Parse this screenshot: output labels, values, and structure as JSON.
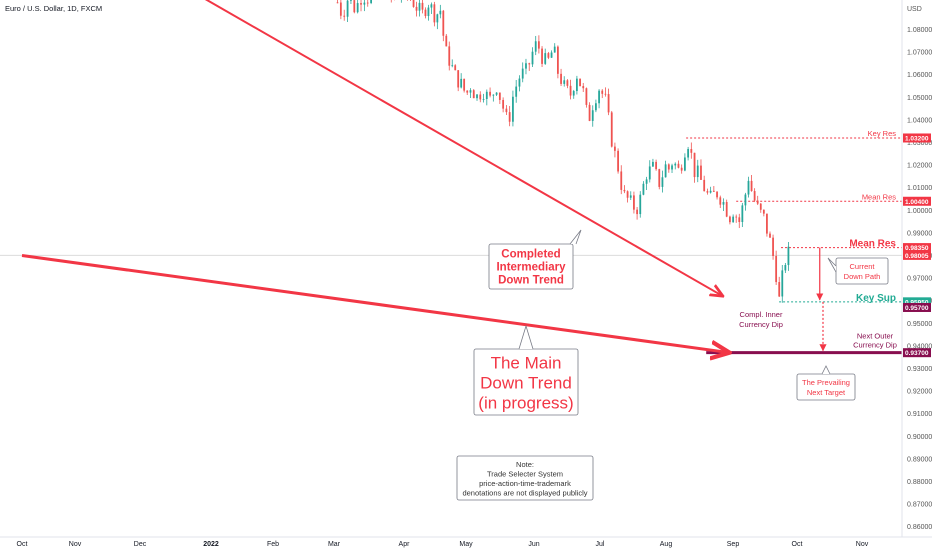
{
  "chart_data": {
    "type": "candlestick",
    "title": "Euro / U.S. Dollar, 1D, FXCM",
    "currency": "USD",
    "y_ticks": [
      1.08,
      1.07,
      1.06,
      1.05,
      1.04,
      1.03,
      1.02,
      1.01,
      1.0,
      0.99,
      0.98,
      0.97,
      0.96,
      0.95,
      0.94,
      0.93,
      0.92,
      0.91,
      0.9,
      0.89,
      0.88,
      0.87,
      0.86
    ],
    "y_tick_labels": [
      "1.08000",
      "1.07000",
      "1.06000",
      "1.05000",
      "1.04000",
      "1.03000",
      "1.02000",
      "1.01000",
      "1.00000",
      "0.99000",
      "0.98000",
      "0.97000",
      "0.96000",
      "0.95000",
      "0.94000",
      "0.93000",
      "0.92000",
      "0.91000",
      "0.90000",
      "0.89000",
      "0.88000",
      "0.87000",
      "0.86000"
    ],
    "x_ticks": [
      {
        "label": "Oct",
        "t": 0
      },
      {
        "label": "Nov",
        "t": 1
      },
      {
        "label": "Dec",
        "t": 2
      },
      {
        "label": "2022",
        "t": 3,
        "bold": true
      },
      {
        "label": "Feb",
        "t": 4
      },
      {
        "label": "Mar",
        "t": 5
      },
      {
        "label": "Apr",
        "t": 6
      },
      {
        "label": "May",
        "t": 7
      },
      {
        "label": "Jun",
        "t": 8
      },
      {
        "label": "Jul",
        "t": 9
      },
      {
        "label": "Aug",
        "t": 10
      },
      {
        "label": "Sep",
        "t": 11
      },
      {
        "label": "Oct",
        "t": 12
      },
      {
        "label": "Nov",
        "t": 13
      }
    ],
    "price_path": [
      [
        5.05,
        1.092
      ],
      [
        5.12,
        1.086
      ],
      [
        5.2,
        1.094
      ],
      [
        5.3,
        1.089
      ],
      [
        5.4,
        1.095
      ],
      [
        5.55,
        1.093
      ],
      [
        5.7,
        1.099
      ],
      [
        5.85,
        1.092
      ],
      [
        6.0,
        1.097
      ],
      [
        6.1,
        1.094
      ],
      [
        6.2,
        1.09
      ],
      [
        6.3,
        1.087
      ],
      [
        6.4,
        1.092
      ],
      [
        6.5,
        1.086
      ],
      [
        6.6,
        1.089
      ],
      [
        6.65,
        1.072
      ],
      [
        6.75,
        1.065
      ],
      [
        6.85,
        1.058
      ],
      [
        6.95,
        1.055
      ],
      [
        7.0,
        1.05
      ],
      [
        7.05,
        1.056
      ],
      [
        7.15,
        1.05
      ],
      [
        7.25,
        1.053
      ],
      [
        7.35,
        1.049
      ],
      [
        7.45,
        1.055
      ],
      [
        7.55,
        1.045
      ],
      [
        7.62,
        1.038
      ],
      [
        7.7,
        1.052
      ],
      [
        7.8,
        1.06
      ],
      [
        7.9,
        1.062
      ],
      [
        8.0,
        1.072
      ],
      [
        8.05,
        1.074
      ],
      [
        8.12,
        1.068
      ],
      [
        8.2,
        1.065
      ],
      [
        8.3,
        1.072
      ],
      [
        8.35,
        1.062
      ],
      [
        8.45,
        1.055
      ],
      [
        8.55,
        1.051
      ],
      [
        8.65,
        1.06
      ],
      [
        8.75,
        1.052
      ],
      [
        8.82,
        1.039
      ],
      [
        8.9,
        1.048
      ],
      [
        9.0,
        1.055
      ],
      [
        9.05,
        1.05
      ],
      [
        9.1,
        1.048
      ],
      [
        9.15,
        1.035
      ],
      [
        9.2,
        1.028
      ],
      [
        9.28,
        1.018
      ],
      [
        9.35,
        1.007
      ],
      [
        9.45,
        1.004
      ],
      [
        9.55,
        1.0
      ],
      [
        9.6,
        1.004
      ],
      [
        9.7,
        1.016
      ],
      [
        9.8,
        1.019
      ],
      [
        9.9,
        1.012
      ],
      [
        10.0,
        1.02
      ],
      [
        10.05,
        1.018
      ],
      [
        10.1,
        1.022
      ],
      [
        10.2,
        1.017
      ],
      [
        10.3,
        1.029
      ],
      [
        10.36,
        1.031
      ],
      [
        10.4,
        1.016
      ],
      [
        10.45,
        1.018
      ],
      [
        10.55,
        1.011
      ],
      [
        10.65,
        1.005
      ],
      [
        10.75,
        1.008
      ],
      [
        10.85,
        1.004
      ],
      [
        10.95,
        0.997
      ],
      [
        11.0,
        1.0
      ],
      [
        11.1,
        0.995
      ],
      [
        11.2,
        1.008
      ],
      [
        11.25,
        1.016
      ],
      [
        11.3,
        1.007
      ],
      [
        11.4,
        1.0
      ],
      [
        11.5,
        0.996
      ],
      [
        11.55,
        0.988
      ],
      [
        11.6,
        0.985
      ],
      [
        11.65,
        0.975
      ],
      [
        11.7,
        0.968
      ],
      [
        11.72,
        0.96
      ],
      [
        11.75,
        0.967
      ],
      [
        11.82,
        0.978
      ],
      [
        11.88,
        0.982
      ]
    ],
    "horizontal_levels": [
      {
        "name": "Key Res",
        "value": 1.032,
        "label": "1.03200",
        "color": "#f23645",
        "line_start_t": 10.3,
        "style": "dotted"
      },
      {
        "name": "Mean Res",
        "value": 1.004,
        "label": "1.00400",
        "color": "#f23645",
        "line_start_t": 11.05,
        "style": "dotted"
      },
      {
        "name": "Mean Res",
        "value": 0.9835,
        "label": "0.98350",
        "color": "#f23645",
        "line_start_t": 11.75,
        "style": "dotted",
        "text_size": "large"
      },
      {
        "name": "",
        "value": 0.98005,
        "label": "0.98005",
        "color": "#f23645",
        "line_start_t": 0,
        "style": "grid"
      },
      {
        "name": "Key Sup",
        "value": 0.9595,
        "label": "0.95950",
        "color": "#22ab94",
        "line_start_t": 11.72,
        "style": "dotted",
        "text_size": "large"
      },
      {
        "name": "",
        "value": 0.957,
        "label": "0.95700",
        "color": "#880e4f",
        "line_start_t": 11.72,
        "style": "none"
      },
      {
        "name": "",
        "value": 0.937,
        "label": "0.93700",
        "color": "#880e4f",
        "line_start_t": 10.6,
        "style": "solid"
      }
    ],
    "trend_lines": [
      {
        "name": "Completed Intermediary Down Trend",
        "from": [
          1.7,
          1.115
        ],
        "to": [
          10.85,
          0.962
        ],
        "color": "#f23645",
        "width": 2,
        "arrow": true
      },
      {
        "name": "The Main Down Trend (in progress)",
        "from": [
          0,
          0.98
        ],
        "to": [
          10.95,
          0.937
        ],
        "color": "#f23645",
        "width": 3,
        "arrow": true
      }
    ],
    "projection_arrows": [
      {
        "name": "Current Down Path",
        "from": [
          12.35,
          0.9835
        ],
        "to": [
          12.35,
          0.9595
        ],
        "color": "#f23645",
        "style": "solid"
      },
      {
        "name": "The Prevailing Next Target",
        "from": [
          12.4,
          0.9595
        ],
        "to": [
          12.4,
          0.937
        ],
        "color": "#f23645",
        "style": "dotted"
      }
    ],
    "annotations": [
      {
        "name": "Completed Intermediary Down Trend",
        "text_lines": [
          "Completed",
          "Intermediary",
          "Down Trend"
        ],
        "color": "#f23645",
        "boxed": true,
        "size": "medium"
      },
      {
        "name": "The Main Down Trend (in progress)",
        "text_lines": [
          "The Main",
          "Down Trend",
          "(in progress)"
        ],
        "color": "#f23645",
        "boxed": true,
        "size": "large"
      },
      {
        "name": "Current Down Path",
        "text_lines": [
          "Current",
          "Down Path"
        ],
        "color": "#f23645",
        "boxed": true,
        "size": "small"
      },
      {
        "name": "The Prevailing Next Target",
        "text_lines": [
          "The Prevailing",
          "Next Target"
        ],
        "color": "#f23645",
        "boxed": true,
        "size": "small"
      },
      {
        "name": "Compl. Inner Currency Dip",
        "text_lines": [
          "Compl. Inner",
          "Currency Dip"
        ],
        "color": "#880e4f",
        "boxed": false,
        "size": "small"
      },
      {
        "name": "Next Outer Currency Dip",
        "text_lines": [
          "Next Outer",
          "Currency Dip"
        ],
        "color": "#880e4f",
        "boxed": false,
        "size": "small"
      },
      {
        "name": "Note",
        "text_lines": [
          "Note:",
          "Trade Selecter System",
          "price-action-time-trademark",
          "denotations are not displayed publicly"
        ],
        "color": "#333333",
        "boxed": true,
        "size": "small"
      }
    ],
    "colors": {
      "up": "#26a69a",
      "down": "#ef5350",
      "accent": "#f23645",
      "maroon": "#880e4f",
      "green": "#22ab94",
      "grid": "#f0f3fa",
      "axis_text": "#555555"
    },
    "grid": false
  }
}
